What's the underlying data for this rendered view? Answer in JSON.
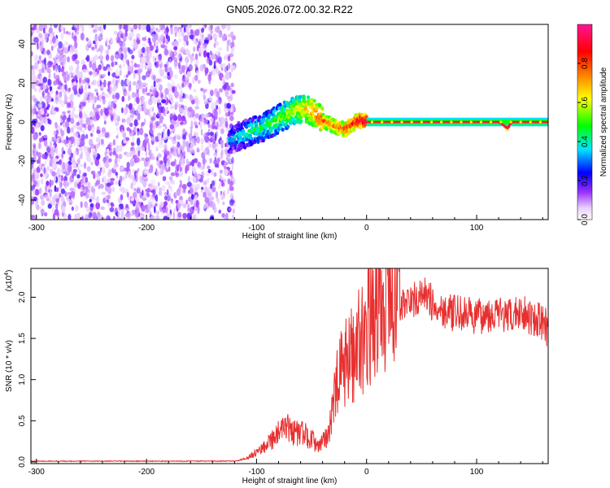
{
  "title": "GN05.2026.072.00.32.R22",
  "chart_data": [
    {
      "type": "heatmap",
      "xlabel": "Height of straight line (km)",
      "ylabel": "Frequency (Hz)",
      "xlim": [
        -305,
        165
      ],
      "ylim": [
        -50,
        50
      ],
      "x_ticks": [
        -300,
        -200,
        -100,
        0,
        100
      ],
      "x_tick_labels": [
        "-300",
        "-200",
        "-100",
        "0",
        "100"
      ],
      "y_ticks": [
        -40,
        -20,
        0,
        20,
        40
      ],
      "y_tick_labels": [
        "-40",
        "-20",
        "0",
        "20",
        "40"
      ],
      "colorbar": {
        "label": "Normalized spectral amplitude",
        "range": [
          0,
          1
        ],
        "ticks": [
          0.0,
          0.2,
          0.4,
          0.6,
          0.8
        ],
        "tick_labels": [
          "0.0",
          "0.2",
          "0.4",
          "0.6",
          "0.8"
        ],
        "colors": [
          "#ffffff",
          "#9b30ff",
          "#0000ff",
          "#00e5ff",
          "#00ff00",
          "#ffff00",
          "#ff8000",
          "#ff0000",
          "#ff1493"
        ]
      },
      "noise_region_x": [
        -305,
        -120
      ],
      "ridge": {
        "x": [
          -125,
          -115,
          -105,
          -95,
          -85,
          -75,
          -65,
          -55,
          -48,
          -40,
          -30,
          -20,
          -10,
          -5,
          0,
          20,
          60,
          120,
          128,
          132,
          140,
          165
        ],
        "y": [
          -10,
          -7,
          -5,
          -3,
          0,
          3,
          6,
          7,
          5,
          1,
          -2,
          -4,
          0,
          1,
          0,
          0,
          0,
          0,
          -3,
          0,
          0,
          0
        ],
        "amplitude": [
          0.35,
          0.4,
          0.45,
          0.45,
          0.5,
          0.55,
          0.6,
          0.7,
          0.75,
          0.8,
          0.75,
          0.8,
          0.85,
          0.9,
          0.95,
          0.95,
          0.95,
          0.95,
          0.9,
          0.95,
          0.95,
          0.95
        ]
      }
    },
    {
      "type": "line",
      "xlabel": "Height of straight line (km)",
      "ylabel": "SNR (10 * v/v)",
      "y_multiplier": "(x10",
      "y_multiplier_exp": "4",
      "y_multiplier_close": ")",
      "xlim": [
        -305,
        165
      ],
      "ylim": [
        -0.02,
        2.35
      ],
      "x_ticks": [
        -300,
        -200,
        -100,
        0,
        100
      ],
      "x_tick_labels": [
        "-300",
        "-200",
        "-100",
        "0",
        "100"
      ],
      "y_ticks": [
        0.0,
        0.5,
        1.0,
        1.5,
        2.0
      ],
      "y_tick_labels": [
        "0.0",
        "0.5",
        "1.0",
        "1.5",
        "2.0"
      ],
      "color": "#e83030",
      "envelope": {
        "x": [
          -305,
          -120,
          -110,
          -100,
          -90,
          -80,
          -70,
          -65,
          -60,
          -50,
          -45,
          -40,
          -35,
          -30,
          -25,
          -20,
          -10,
          0,
          10,
          20,
          30,
          40,
          50,
          55,
          60,
          70,
          80,
          90,
          100,
          110,
          120,
          130,
          140,
          150,
          160,
          165
        ],
        "y": [
          0.01,
          0.01,
          0.03,
          0.1,
          0.2,
          0.3,
          0.35,
          0.3,
          0.3,
          0.25,
          0.15,
          0.2,
          0.3,
          0.6,
          0.9,
          1.0,
          1.2,
          1.4,
          1.6,
          1.75,
          1.9,
          1.95,
          2.0,
          2.05,
          1.9,
          1.85,
          1.8,
          1.8,
          1.75,
          1.8,
          1.8,
          1.75,
          1.85,
          1.75,
          1.7,
          1.6
        ]
      }
    }
  ]
}
